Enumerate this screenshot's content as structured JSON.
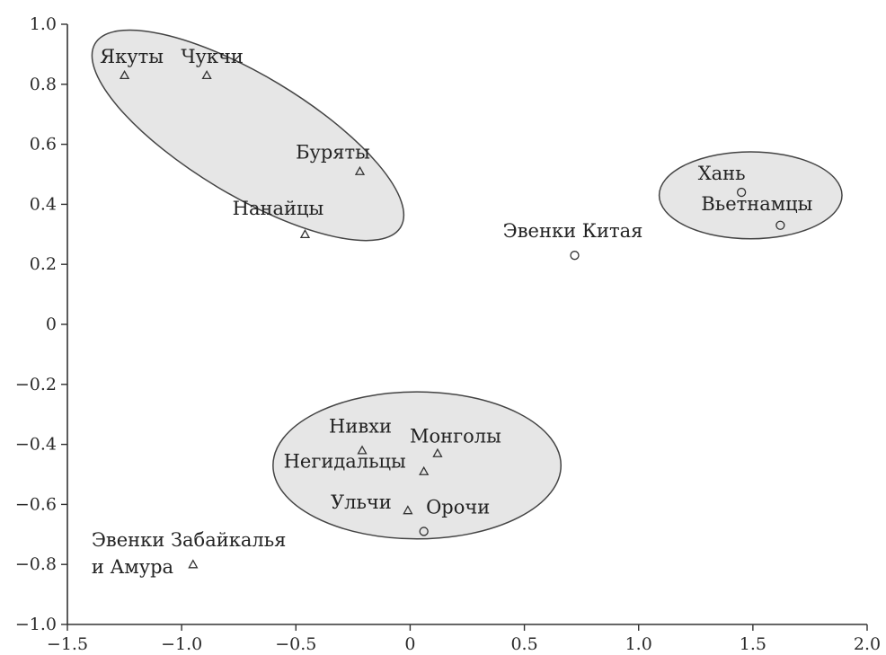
{
  "chart_data": {
    "type": "scatter",
    "title": "",
    "xlabel": "",
    "ylabel": "",
    "xlim": [
      -1.5,
      2.0
    ],
    "ylim": [
      -1.0,
      1.0
    ],
    "x_ticks": [
      -1.5,
      -1.0,
      -0.5,
      0,
      0.5,
      1.0,
      1.5,
      2.0
    ],
    "x_tick_labels": [
      "−1.5",
      "−1.0",
      "−0.5",
      "0",
      "0.5",
      "1.0",
      "1.5",
      "2.0"
    ],
    "y_ticks": [
      1.0,
      0.8,
      0.6,
      0.4,
      0.2,
      0,
      -0.2,
      -0.4,
      -0.6,
      -0.8,
      -1.0
    ],
    "y_tick_labels": [
      "1.0",
      "0.8",
      "0.6",
      "0.4",
      "0.2",
      "0",
      "−0.2",
      "−0.4",
      "−0.6",
      "−0.8",
      "−1.0"
    ],
    "grid": false,
    "points": [
      {
        "label": "Якуты",
        "x": -1.25,
        "y": 0.83,
        "marker": "triangle"
      },
      {
        "label": "Чукчи",
        "x": -0.89,
        "y": 0.83,
        "marker": "triangle"
      },
      {
        "label": "Буряты",
        "x": -0.22,
        "y": 0.51,
        "marker": "triangle"
      },
      {
        "label": "Нанайцы",
        "x": -0.46,
        "y": 0.3,
        "marker": "triangle"
      },
      {
        "label": "Эвенки Китая",
        "x": 0.72,
        "y": 0.23,
        "marker": "circle"
      },
      {
        "label": "Хань",
        "x": 1.45,
        "y": 0.44,
        "marker": "circle"
      },
      {
        "label": "Вьетнамцы",
        "x": 1.62,
        "y": 0.33,
        "marker": "circle"
      },
      {
        "label": "Нивхи",
        "x": -0.21,
        "y": -0.42,
        "marker": "triangle"
      },
      {
        "label": "Монголы",
        "x": 0.12,
        "y": -0.43,
        "marker": "triangle"
      },
      {
        "label": "Негидальцы",
        "x": 0.06,
        "y": -0.49,
        "marker": "triangle"
      },
      {
        "label": "Ульчи",
        "x": -0.01,
        "y": -0.62,
        "marker": "triangle"
      },
      {
        "label": "Орочи",
        "x": 0.06,
        "y": -0.69,
        "marker": "circle"
      },
      {
        "label": "Эвенки Забайкалья\nи Амура",
        "x": -0.95,
        "y": -0.8,
        "marker": "triangle"
      }
    ],
    "clusters": [
      {
        "cx": -0.71,
        "cy": 0.63,
        "rx": 0.78,
        "ry": 0.2,
        "angle_deg": 31
      },
      {
        "cx": 1.49,
        "cy": 0.43,
        "rx": 0.4,
        "ry": 0.145,
        "angle_deg": 0
      },
      {
        "cx": 0.03,
        "cy": -0.47,
        "rx": 0.63,
        "ry": 0.245,
        "angle_deg": 0
      }
    ]
  }
}
